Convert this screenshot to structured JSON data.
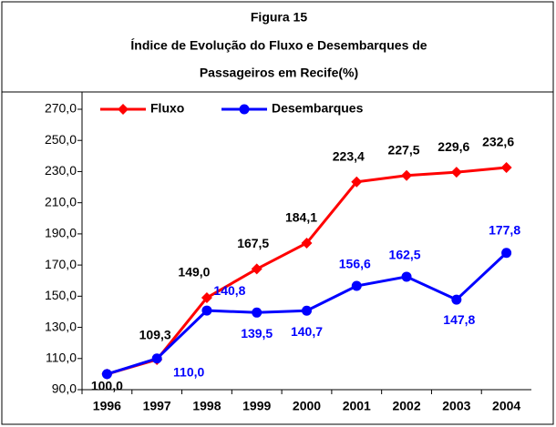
{
  "chart_data": {
    "type": "line",
    "title": [
      "Figura 15",
      "Índice de Evolução do Fluxo e Desembarques de",
      "Passageiros em Recife(%)"
    ],
    "categories": [
      "1996",
      "1997",
      "1998",
      "1999",
      "2000",
      "2001",
      "2002",
      "2003",
      "2004"
    ],
    "series": [
      {
        "name": "Fluxo",
        "color": "#ff0000",
        "marker": "diamond",
        "label_color": "#000000",
        "values": [
          100.0,
          109.3,
          149.0,
          167.5,
          184.1,
          223.4,
          227.5,
          229.6,
          232.6
        ],
        "value_labels": [
          "100,0",
          "109,3",
          "149,0",
          "167,5",
          "184,1",
          "223,4",
          "227,5",
          "229,6",
          "232,6"
        ]
      },
      {
        "name": "Desembarques",
        "color": "#0000ff",
        "marker": "circle",
        "label_color": "#0000ff",
        "values": [
          100.0,
          110.0,
          140.8,
          139.5,
          140.7,
          156.6,
          162.5,
          147.8,
          177.8
        ],
        "value_labels": [
          null,
          "110,0",
          "140,8",
          "139,5",
          "140,7",
          "156,6",
          "162,5",
          "147,8",
          "177,8"
        ]
      }
    ],
    "ylim": [
      90,
      270
    ],
    "yticks": [
      {
        "value": 90,
        "label": "90,0"
      },
      {
        "value": 110,
        "label": "110,0"
      },
      {
        "value": 130,
        "label": "130,0"
      },
      {
        "value": 150,
        "label": "150,0"
      },
      {
        "value": 170,
        "label": "170,0"
      },
      {
        "value": 190,
        "label": "190,0"
      },
      {
        "value": 210,
        "label": "210,0"
      },
      {
        "value": 230,
        "label": "230,0"
      },
      {
        "value": 250,
        "label": "250,0"
      },
      {
        "value": 270,
        "label": "270,0"
      }
    ],
    "legend": "top-left"
  }
}
